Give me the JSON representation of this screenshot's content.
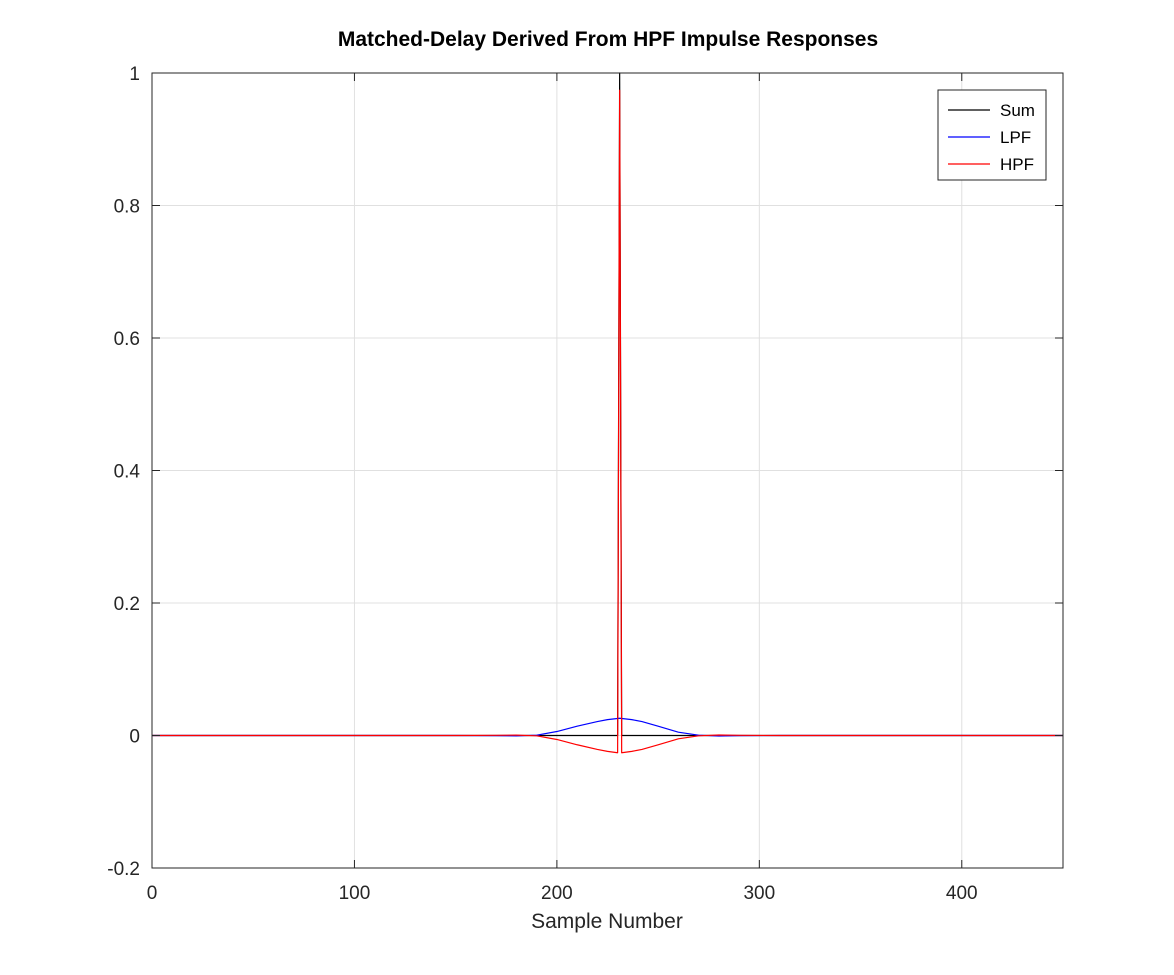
{
  "chart_data": {
    "type": "line",
    "title": "Matched-Delay Derived From HPF Impulse Responses",
    "xlabel": "Sample Number",
    "ylabel": "",
    "xlim": [
      0,
      450
    ],
    "ylim": [
      -0.2,
      1
    ],
    "x_ticks": [
      0,
      100,
      200,
      300,
      400
    ],
    "y_ticks": [
      -0.2,
      0,
      0.2,
      0.4,
      0.6,
      0.8,
      1
    ],
    "x_tick_labels": [
      "0",
      "100",
      "200",
      "300",
      "400"
    ],
    "y_tick_labels": [
      "-0.2",
      "0",
      "0.2",
      "0.4",
      "0.6",
      "0.8",
      "1"
    ],
    "grid": true,
    "legend_position": "top-right",
    "series": [
      {
        "name": "Sum",
        "color": "#000000",
        "x": [
          0,
          230,
          231,
          232,
          450
        ],
        "y": [
          0,
          0,
          1,
          0,
          0
        ]
      },
      {
        "name": "LPF",
        "color": "#0000ff",
        "x": [
          0,
          150,
          170,
          180,
          190,
          200,
          210,
          220,
          225,
          231,
          237,
          242,
          250,
          260,
          270,
          280,
          290,
          310,
          450
        ],
        "y": [
          0,
          0,
          -0.0003,
          -0.0006,
          0.0005,
          0.006,
          0.014,
          0.021,
          0.024,
          0.026,
          0.024,
          0.021,
          0.014,
          0.005,
          0.0005,
          -0.0008,
          -0.0003,
          0,
          0
        ]
      },
      {
        "name": "HPF",
        "color": "#ff0000",
        "x": [
          0,
          150,
          170,
          180,
          190,
          200,
          210,
          220,
          225,
          230,
          231,
          232,
          237,
          242,
          250,
          260,
          270,
          280,
          290,
          310,
          450
        ],
        "y": [
          0,
          0,
          0.0003,
          0.0006,
          -0.0005,
          -0.006,
          -0.014,
          -0.021,
          -0.024,
          -0.026,
          0.974,
          -0.026,
          -0.024,
          -0.021,
          -0.014,
          -0.005,
          -0.0005,
          0.0008,
          0.0003,
          0,
          0
        ]
      }
    ]
  }
}
